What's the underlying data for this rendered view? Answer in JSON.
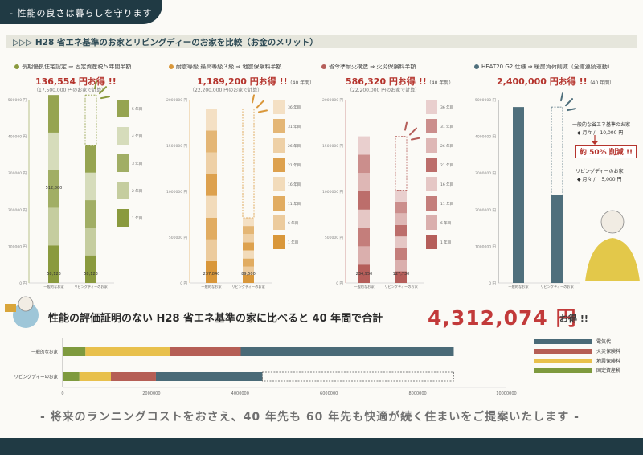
{
  "header": {
    "tab_label": "- 性能の良さは暮らしを守ります"
  },
  "section": {
    "title": "▷▷▷ H28 省エネ基準のお家とリビングディーのお家を比較（お金のメリット）"
  },
  "panels": [
    {
      "title": "長期優良住宅認定 ⇒ 固定資産税５年間半額",
      "amount": "136,554 円お得 !!",
      "amount_suffix": "",
      "sub": "（17,500,000 円のお家で計算）",
      "color": "#8a9a3e",
      "ticks": [
        "500000 円",
        "400000 円",
        "300000 円",
        "200000 円",
        "100000 円",
        "0 円"
      ],
      "bar1_value": "512,800",
      "bar1_base": "58,123",
      "bar2_base": "58,123",
      "cat1": "一般的なお家",
      "cat2": "リビングディーのお家",
      "years": [
        "5 年目",
        "4 年目",
        "3 年目",
        "2 年目",
        "1 年目"
      ]
    },
    {
      "title": "耐震等級 最高等級３級 ⇒ 地震保険料半額",
      "amount": "1,189,200 円お得 !!",
      "amount_suffix": "（40 年間）",
      "sub": "（22,200,000 円のお家で計算）",
      "color": "#d9973a",
      "ticks": [
        "2000000 円",
        "1500000 円",
        "1000000 円",
        "500000 円",
        "0 円"
      ],
      "bar1_base": "237,840",
      "bar2_base": "89,500",
      "cat1": "一般的なお家",
      "cat2": "リビングディーのお家",
      "years": [
        "36 年目",
        "31 年目",
        "26 年目",
        "21 年目",
        "16 年目",
        "11 年目",
        "6 年目",
        "1 年目"
      ]
    },
    {
      "title": "省令準耐火構造 ⇒ 火災保険料半額",
      "amount": "586,320 円お得 !!",
      "amount_suffix": "（40 年間）",
      "sub": "（22,200,000 円のお家で計算）",
      "color": "#b55e5a",
      "ticks": [
        "2000000 円",
        "1500000 円",
        "1000000 円",
        "500000 円",
        "0 円"
      ],
      "bar1_base": "234,950",
      "bar2_base": "127,730",
      "cat1": "一般的なお家",
      "cat2": "リビングディーのお家",
      "years": [
        "36 年目",
        "31 年目",
        "26 年目",
        "21 年目",
        "16 年目",
        "11 年目",
        "6 年目",
        "1 年目"
      ]
    },
    {
      "title": "HEAT20 G2 仕様 ⇒ 暖房負荷削減（全館連続運動）",
      "amount": "2,400,000 円お得 !!",
      "amount_suffix": "（40 年間）",
      "sub": "",
      "color": "#4f6f7c",
      "ticks": [
        "5000000 円",
        "4000000 円",
        "3000000 円",
        "2000000 円",
        "1000000 円",
        "0 円"
      ],
      "cat1": "一般的なお家",
      "cat2": "リビングディーのお家",
      "note1_l1": "一般的な省エネ基準のお家",
      "note1_l2": "◆ 月々 /　10,000 円",
      "note_cut": "約 50% 削減 !!",
      "note2_l1": "リビングディーのお家",
      "note2_l2": "◆ 月々 /　 5,000 円"
    }
  ],
  "summary": {
    "line": "性能の評価証明のない H28 省エネ基準の家に比べると 40 年間で合計",
    "amount": "4,312,074 円",
    "suffix": "お得 !!"
  },
  "legend": [
    {
      "label": "電気代",
      "color": "#4a6a77"
    },
    {
      "label": "火災保険料",
      "color": "#b55e55"
    },
    {
      "label": "地震保険料",
      "color": "#e8c04c"
    },
    {
      "label": "固定資産税",
      "color": "#7e9a3e"
    }
  ],
  "chart_data": [
    {
      "type": "bar",
      "stacked": true,
      "orientation": "vertical",
      "ylim": [
        0,
        500000
      ],
      "categories": [
        "一般的なお家",
        "リビングディーのお家"
      ],
      "series": [
        {
          "values": [
            512800,
            376246
          ]
        }
      ],
      "segment_labels": [
        "58,123",
        "58,123"
      ]
    },
    {
      "type": "bar",
      "stacked": true,
      "orientation": "vertical",
      "ylim": [
        0,
        2000000
      ],
      "categories": [
        "一般的なお家",
        "リビングディーのお家"
      ],
      "series": [
        {
          "values": [
            1900000,
            710800
          ]
        }
      ],
      "segment_labels": [
        "237,840",
        "89,500"
      ]
    },
    {
      "type": "bar",
      "stacked": true,
      "orientation": "vertical",
      "ylim": [
        0,
        2000000
      ],
      "categories": [
        "一般的なお家",
        "リビングディーのお家"
      ],
      "series": [
        {
          "values": [
            1600000,
            1013680
          ]
        }
      ],
      "segment_labels": [
        "234,950",
        "127,730"
      ]
    },
    {
      "type": "bar",
      "orientation": "vertical",
      "ylim": [
        0,
        5000000
      ],
      "categories": [
        "一般的なお家",
        "リビングディーのお家"
      ],
      "series": [
        {
          "values": [
            4800000,
            2400000
          ]
        }
      ]
    },
    {
      "type": "bar",
      "stacked": true,
      "orientation": "horizontal",
      "xlim": [
        0,
        10000000
      ],
      "x_ticks": [
        "0",
        "2000000",
        "4000000",
        "6000000",
        "8000000",
        "10000000"
      ],
      "categories": [
        "一般的なお家",
        "リビングディーのお家"
      ],
      "series": [
        {
          "name": "固定資産税",
          "values": [
            512800,
            376246
          ]
        },
        {
          "name": "地震保険料",
          "values": [
            1900000,
            710800
          ]
        },
        {
          "name": "火災保険料",
          "values": [
            1600000,
            1013680
          ]
        },
        {
          "name": "電気代",
          "values": [
            4800000,
            2400000
          ]
        }
      ]
    }
  ],
  "footer": {
    "message": "- 将来のランニングコストをおさえ、40 年先も 60 年先も快適が続く住まいをご提案いたします -"
  }
}
